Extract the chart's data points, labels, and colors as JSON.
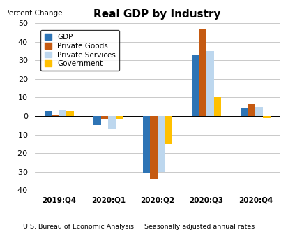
{
  "title": "Real GDP by Industry",
  "ylabel": "Percent Change",
  "categories": [
    "2019:Q4",
    "2020:Q1",
    "2020:Q2",
    "2020:Q3",
    "2020:Q4"
  ],
  "series": {
    "GDP": [
      2.5,
      -5.0,
      -31.0,
      33.0,
      4.5
    ],
    "Private Goods": [
      0.5,
      -1.5,
      -34.0,
      47.0,
      6.5
    ],
    "Private Services": [
      3.0,
      -7.0,
      -30.0,
      35.0,
      5.0
    ],
    "Government": [
      2.5,
      -1.5,
      -15.0,
      10.0,
      -1.0
    ]
  },
  "colors": {
    "GDP": "#2E74B5",
    "Private Goods": "#C55A11",
    "Private Services": "#BDD7EE",
    "Government": "#FFC000"
  },
  "ylim": [
    -40,
    50
  ],
  "yticks": [
    -40,
    -30,
    -20,
    -10,
    0,
    10,
    20,
    30,
    40,
    50
  ],
  "footer_left": "U.S. Bureau of Economic Analysis",
  "footer_right": "Seasonally adjusted annual rates",
  "background_color": "#FFFFFF"
}
